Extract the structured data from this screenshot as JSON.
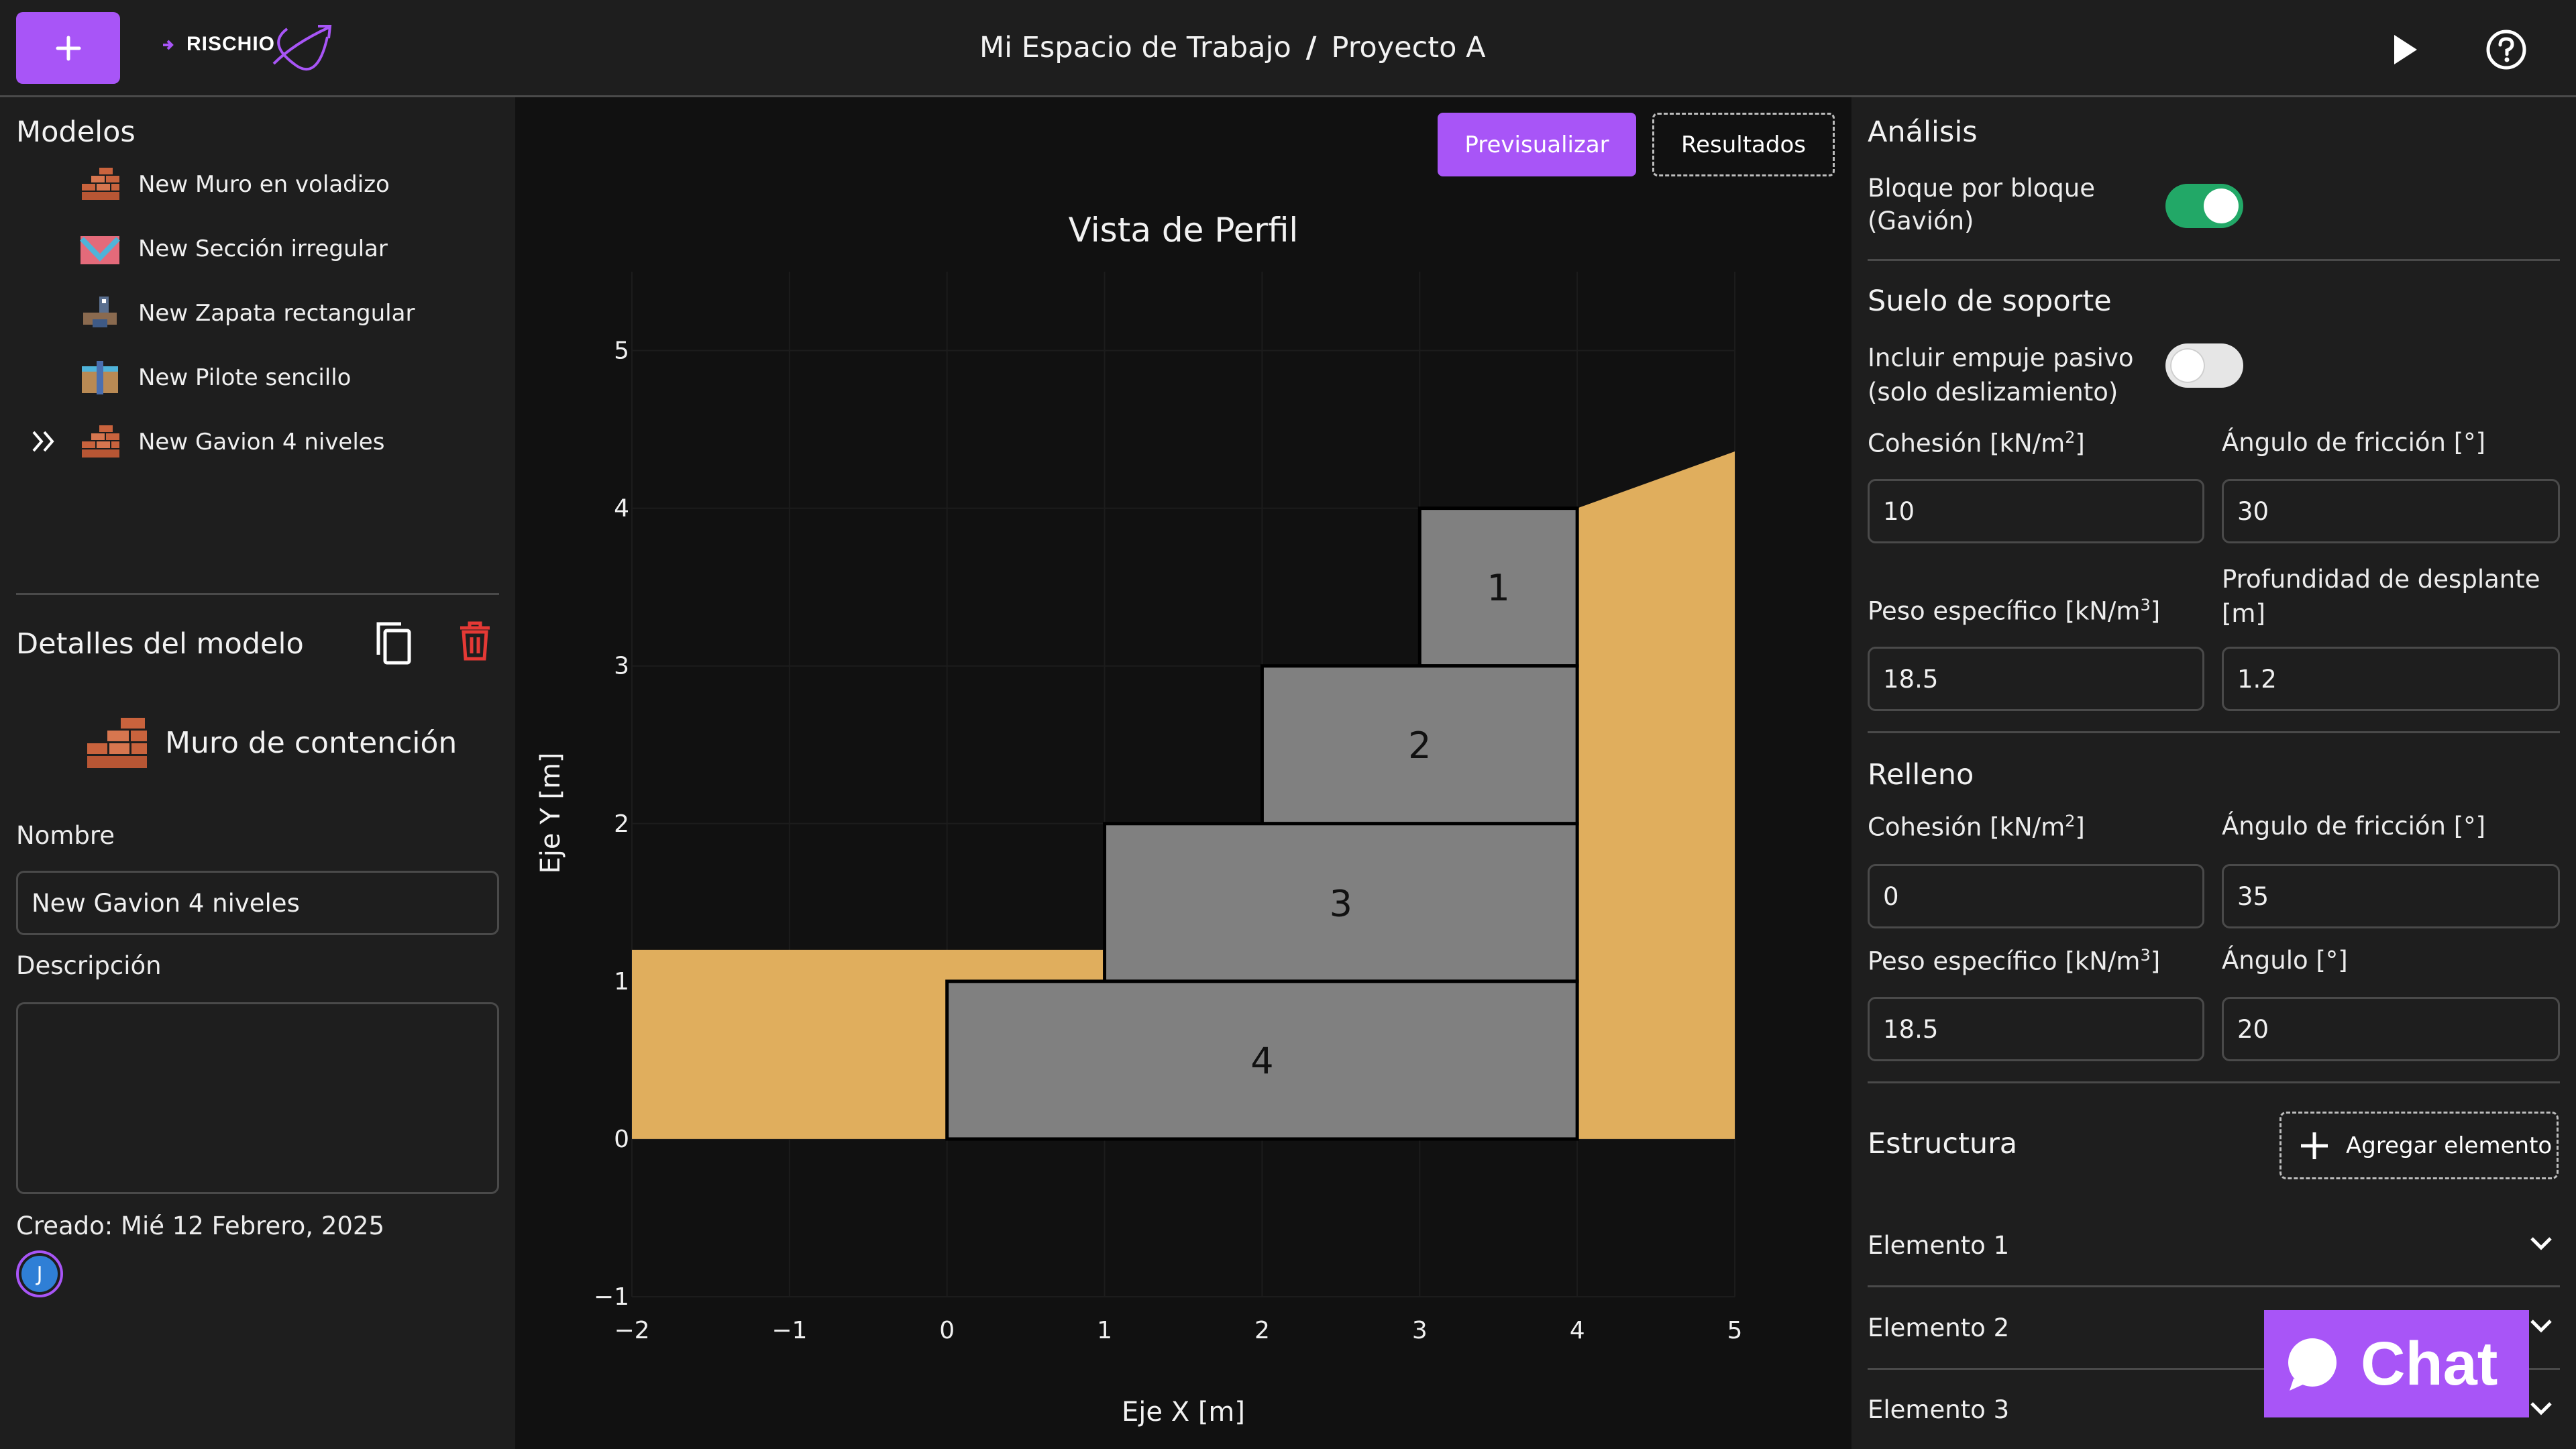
{
  "header": {
    "logo_text": "RISCHIO",
    "breadcrumb_workspace": "Mi Espacio de Trabajo",
    "breadcrumb_separator": "/",
    "breadcrumb_project": "Proyecto A"
  },
  "models": {
    "title": "Modelos",
    "items": [
      {
        "label": "New Muro en voladizo",
        "icon": "brick-wall-icon"
      },
      {
        "label": "New Sección irregular",
        "icon": "irregular-section-icon"
      },
      {
        "label": "New Zapata rectangular",
        "icon": "footing-icon"
      },
      {
        "label": "New Pilote sencillo",
        "icon": "pile-icon"
      },
      {
        "label": "New Gavion 4 niveles",
        "icon": "gabion-icon"
      }
    ]
  },
  "details": {
    "title": "Detalles del modelo",
    "type_label": "Muro de contención",
    "name_label": "Nombre",
    "name_value": "New Gavion 4 niveles",
    "description_label": "Descripción",
    "description_value": "",
    "created": "Creado: Mié 12 Febrero, 2025",
    "avatar_initial": "J"
  },
  "center": {
    "preview_button": "Previsualizar",
    "results_button": "Resultados"
  },
  "chart_data": {
    "type": "area",
    "title": "Vista de Perfil",
    "xlabel": "Eje X [m]",
    "ylabel": "Eje Y [m]",
    "xlim": [
      -2,
      5
    ],
    "ylim": [
      -1,
      5.5
    ],
    "xticks": [
      "−2",
      "−1",
      "0",
      "1",
      "2",
      "3",
      "4",
      "5"
    ],
    "xtick_values": [
      -2,
      -1,
      0,
      1,
      2,
      3,
      4,
      5
    ],
    "yticks": [
      "−1",
      "0",
      "1",
      "2",
      "3",
      "4",
      "5"
    ],
    "ytick_values": [
      -1,
      0,
      1,
      2,
      3,
      4,
      5
    ],
    "blocks": [
      {
        "label": "1",
        "x0": 3,
        "x1": 4,
        "y0": 3,
        "y1": 4
      },
      {
        "label": "2",
        "x0": 2,
        "x1": 4,
        "y0": 2,
        "y1": 3
      },
      {
        "label": "3",
        "x0": 1,
        "x1": 4,
        "y0": 1,
        "y1": 2
      },
      {
        "label": "4",
        "x0": 0,
        "x1": 4,
        "y0": 0,
        "y1": 1
      }
    ],
    "soil_front": [
      [
        -2,
        0
      ],
      [
        -2,
        1.2
      ],
      [
        1,
        1.2
      ],
      [
        1,
        1
      ],
      [
        0,
        1
      ],
      [
        0,
        0
      ]
    ],
    "soil_back": [
      [
        4,
        0
      ],
      [
        4,
        4
      ],
      [
        5,
        4.36
      ],
      [
        5,
        0
      ]
    ],
    "block_color": "#808080",
    "soil_color": "#e0ae5d"
  },
  "analysis": {
    "title": "Análisis",
    "toggle_label_line1": "Bloque por bloque",
    "toggle_label_line2": "(Gavión)",
    "toggle_on": true
  },
  "support_soil": {
    "title": "Suelo de soporte",
    "toggle_label_line1": "Incluir empuje pasivo",
    "toggle_label_line2": "(solo deslizamiento)",
    "toggle_on": false,
    "cohesion_label": "Cohesión [kN/m",
    "cohesion_sup": "2",
    "cohesion_close": "]",
    "cohesion_value": "10",
    "friction_label": "Ángulo de fricción [°]",
    "friction_value": "30",
    "weight_label": "Peso específico [kN/m",
    "weight_sup": "3",
    "weight_close": "]",
    "weight_value": "18.5",
    "depth_label_line1": "Profundidad de desplante",
    "depth_label_line2": "[m]",
    "depth_value": "1.2"
  },
  "fill": {
    "title": "Relleno",
    "cohesion_label": "Cohesión [kN/m",
    "cohesion_sup": "2",
    "cohesion_close": "]",
    "cohesion_value": "0",
    "friction_label": "Ángulo de fricción [°]",
    "friction_value": "35",
    "weight_label": "Peso específico  [kN/m",
    "weight_sup": "3",
    "weight_close": "]",
    "weight_value": "18.5",
    "angle_label": "Ángulo [°]",
    "angle_value": "20"
  },
  "structure": {
    "title": "Estructura",
    "add_button": "Agregar elemento",
    "elements": [
      "Elemento 1",
      "Elemento 2",
      "Elemento 3"
    ]
  },
  "chat": {
    "label": "Chat"
  },
  "colors": {
    "accent": "#a855f7",
    "toggle_on": "#22a867",
    "delete": "#e53935",
    "panel": "#1e1e1e",
    "canvas": "#111111"
  }
}
